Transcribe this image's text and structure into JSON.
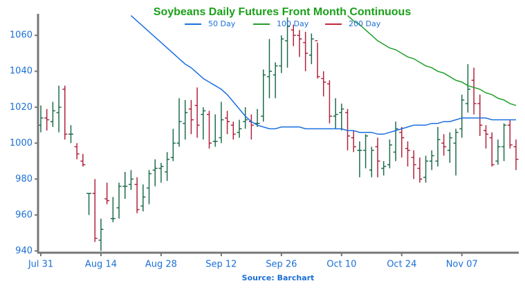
{
  "chart_data": {
    "type": "ohlc",
    "title": "Soybeans Daily Futures Front Month Continuous",
    "source": "Source: Barchart",
    "up_color": "#1d6b4a",
    "down_color": "#b0223a",
    "categories": [
      "Jul 31",
      null,
      null,
      null,
      null,
      null,
      null,
      null,
      null,
      null,
      "Aug 14",
      null,
      null,
      null,
      null,
      null,
      null,
      null,
      null,
      null,
      "Aug 28",
      null,
      null,
      null,
      null,
      null,
      null,
      null,
      null,
      null,
      "Sep 12",
      null,
      null,
      null,
      null,
      null,
      null,
      null,
      null,
      null,
      "Sep 26",
      null,
      null,
      null,
      null,
      null,
      null,
      null,
      null,
      null,
      "Oct 10",
      null,
      null,
      null,
      null,
      null,
      null,
      null,
      null,
      null,
      "Oct 24",
      null,
      null,
      null,
      null,
      null,
      null,
      null,
      null,
      null,
      "Nov 07",
      null,
      null,
      null,
      null,
      null,
      null,
      null,
      null,
      null
    ],
    "open": [
      1010,
      1014,
      1012,
      1017,
      1030,
      1005,
      998,
      990,
      972,
      972,
      946,
      969,
      958,
      964,
      976,
      977,
      977,
      965,
      975,
      985,
      986,
      984,
      992,
      1000,
      1011,
      1019,
      1021,
      1016,
      1016,
      1001,
      1003,
      1014,
      1010,
      1006,
      1012,
      1012,
      1011,
      1015,
      1037,
      1038,
      1043,
      1057,
      1063,
      1060,
      1056,
      1049,
      1057,
      1036,
      1033,
      1015,
      1017,
      1017,
      1003,
      996,
      996,
      985,
      998,
      986,
      988,
      995,
      1006,
      997,
      992,
      986,
      981,
      990,
      990,
      1000,
      996,
      1000,
      1008,
      1022,
      1035,
      1022,
      1007,
      1003,
      990,
      998,
      1010,
      998
    ],
    "high": [
      1021,
      1019,
      1023,
      1032,
      1032,
      1010,
      1000,
      994,
      972,
      980,
      958,
      978,
      970,
      978,
      984,
      985,
      981,
      977,
      985,
      991,
      989,
      995,
      1008,
      1025,
      1024,
      1024,
      1031,
      1020,
      1018,
      1016,
      1023,
      1018,
      1012,
      1013,
      1020,
      1016,
      1019,
      1041,
      1058,
      1045,
      1060,
      1070,
      1066,
      1063,
      1062,
      1061,
      1056,
      1040,
      1035,
      1025,
      1022,
      1019,
      1007,
      1001,
      1005,
      998,
      1003,
      990,
      1002,
      1012,
      1009,
      1001,
      996,
      992,
      993,
      996,
      1009,
      1005,
      1006,
      1008,
      1027,
      1044,
      1042,
      1027,
      1010,
      1006,
      1002,
      1011,
      1013,
      1002
    ],
    "low": [
      1006,
      1007,
      1009,
      1006,
      1002,
      1000,
      991,
      987,
      960,
      945,
      940,
      966,
      956,
      958,
      969,
      974,
      961,
      962,
      966,
      976,
      978,
      979,
      990,
      998,
      1002,
      1005,
      1003,
      1002,
      997,
      998,
      1000,
      1005,
      1002,
      1003,
      1008,
      1002,
      1009,
      1012,
      1025,
      1025,
      1039,
      1042,
      1054,
      1048,
      1040,
      1044,
      1036,
      1026,
      1011,
      1008,
      1007,
      996,
      995,
      981,
      986,
      981,
      981,
      982,
      986,
      990,
      992,
      987,
      980,
      978,
      978,
      985,
      987,
      993,
      989,
      982,
      1003,
      1017,
      1016,
      1004,
      997,
      987,
      988,
      990,
      997,
      985
    ],
    "close": [
      1014,
      1013,
      1018,
      1020,
      1005,
      1005,
      994,
      988,
      972,
      947,
      952,
      968,
      958,
      976,
      976,
      980,
      963,
      970,
      983,
      986,
      987,
      991,
      1000,
      1012,
      1017,
      1013,
      1010,
      1018,
      1000,
      1001,
      1013,
      1012,
      1005,
      1008,
      1013,
      1010,
      1011,
      1038,
      1040,
      1043,
      1058,
      1065,
      1060,
      1058,
      1050,
      1058,
      1037,
      1034,
      1015,
      1016,
      1019,
      1004,
      998,
      996,
      1004,
      996,
      990,
      987,
      999,
      1008,
      1003,
      996,
      988,
      980,
      990,
      993,
      1002,
      998,
      1003,
      1006,
      1024,
      1030,
      1022,
      1010,
      1005,
      988,
      998,
      1010,
      999,
      991
    ],
    "series": [
      {
        "name": "50 Day",
        "color": "#1a6fe0",
        "values": [
          null,
          null,
          null,
          null,
          null,
          null,
          null,
          null,
          null,
          null,
          null,
          null,
          null,
          null,
          null,
          1071,
          1068,
          1065,
          1062,
          1059,
          1056,
          1053,
          1050,
          1047,
          1044,
          1042,
          1039,
          1036,
          1034,
          1032,
          1030,
          1027,
          1023,
          1019,
          1015,
          1012,
          1010,
          1009,
          1008,
          1008,
          1009,
          1009,
          1009,
          1009,
          1008,
          1008,
          1008,
          1008,
          1008,
          1008,
          1008,
          1007,
          1007,
          1006,
          1006,
          1006,
          1005,
          1005,
          1006,
          1007,
          1008,
          1009,
          1010,
          1010,
          1010,
          1011,
          1011,
          1012,
          1012,
          1013,
          1014,
          1014,
          1014,
          1014,
          1014,
          1013,
          1013,
          1013,
          1013,
          1013
        ]
      },
      {
        "name": "100 Day",
        "color": "#1f9e28",
        "values": [
          null,
          null,
          null,
          null,
          null,
          null,
          null,
          null,
          null,
          null,
          null,
          null,
          null,
          null,
          null,
          null,
          null,
          null,
          null,
          null,
          null,
          null,
          null,
          null,
          null,
          null,
          null,
          null,
          null,
          null,
          null,
          null,
          null,
          null,
          null,
          null,
          null,
          null,
          null,
          null,
          null,
          null,
          null,
          null,
          null,
          null,
          null,
          null,
          null,
          null,
          null,
          1071,
          1068,
          1066,
          1063,
          1060,
          1057,
          1055,
          1053,
          1052,
          1050,
          1048,
          1047,
          1045,
          1043,
          1042,
          1040,
          1039,
          1037,
          1035,
          1034,
          1032,
          1031,
          1030,
          1028,
          1027,
          1025,
          1024,
          1022,
          1021
        ]
      },
      {
        "name": "200 Day",
        "color": "#c0273c",
        "values": [
          null,
          null,
          null,
          null,
          null,
          null,
          null,
          null,
          null,
          null,
          null,
          null,
          null,
          null,
          null,
          null,
          null,
          null,
          null,
          null,
          null,
          null,
          null,
          null,
          null,
          null,
          null,
          null,
          null,
          null,
          null,
          null,
          null,
          null,
          null,
          null,
          null,
          null,
          null,
          null,
          null,
          null,
          null,
          null,
          null,
          null,
          null,
          null,
          null,
          null,
          null,
          null,
          null,
          null,
          null,
          null,
          null,
          null,
          null,
          null,
          null,
          null,
          null,
          null,
          null,
          null,
          null,
          null,
          null,
          null,
          null,
          null,
          null,
          null,
          null,
          null,
          null,
          null,
          null,
          null
        ]
      }
    ],
    "ylim": [
      939,
      1072
    ],
    "yticks": [
      940,
      960,
      980,
      1000,
      1020,
      1040,
      1060
    ]
  }
}
